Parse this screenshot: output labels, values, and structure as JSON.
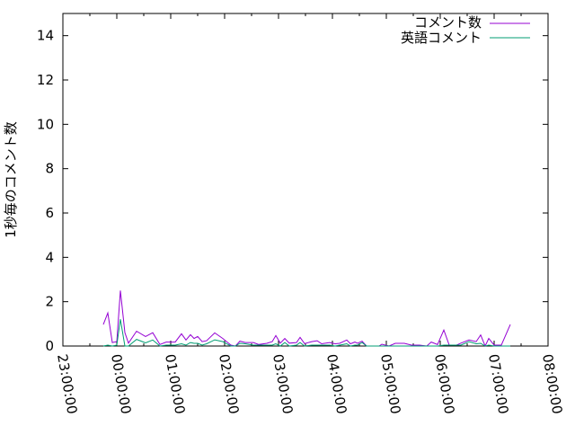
{
  "chart_data": {
    "type": "line",
    "title": "",
    "xlabel": "",
    "ylabel": "1秒毎のコメント数",
    "xlim": [
      "23:00:00",
      "08:00:00"
    ],
    "ylim": [
      0,
      15
    ],
    "xticks": [
      "23:00:00",
      "00:00:00",
      "01:00:00",
      "02:00:00",
      "03:00:00",
      "04:00:00",
      "05:00:00",
      "06:00:00",
      "07:00:00",
      "08:00:00"
    ],
    "yticks": [
      "0",
      "2",
      "4",
      "6",
      "8",
      "10",
      "12",
      "14"
    ],
    "grid": false,
    "legend": "top-right",
    "x": [
      "23:45",
      "23:50",
      "23:55",
      "00:00",
      "00:04",
      "00:09",
      "00:13",
      "00:22",
      "00:32",
      "00:40",
      "00:48",
      "00:55",
      "01:05",
      "01:12",
      "01:17",
      "01:22",
      "01:26",
      "01:30",
      "01:35",
      "01:40",
      "01:49",
      "01:58",
      "02:07",
      "02:12",
      "02:17",
      "02:23",
      "02:32",
      "02:38",
      "02:47",
      "02:53",
      "02:57",
      "03:02",
      "03:07",
      "03:12",
      "03:20",
      "03:24",
      "03:29",
      "03:37",
      "03:43",
      "03:48",
      "03:57",
      "04:03",
      "04:08",
      "04:16",
      "04:20",
      "04:25",
      "04:28",
      "04:33",
      "04:38",
      "04:45",
      "04:52",
      "04:55",
      "05:03",
      "05:10",
      "05:20",
      "05:28",
      "05:37",
      "05:45",
      "05:50",
      "05:57",
      "06:04",
      "06:10",
      "06:18",
      "06:23",
      "06:32",
      "06:40",
      "06:45",
      "06:50",
      "06:54",
      "07:00",
      "07:08",
      "07:18"
    ],
    "series": [
      {
        "name": "コメント数",
        "color": "#9400d3",
        "values": [
          0.97,
          1.49,
          0.16,
          0.2,
          2.5,
          0.6,
          0.13,
          0.67,
          0.43,
          0.6,
          0.07,
          0.18,
          0.18,
          0.55,
          0.27,
          0.51,
          0.34,
          0.43,
          0.2,
          0.24,
          0.59,
          0.34,
          0.04,
          0,
          0.22,
          0.16,
          0.16,
          0.07,
          0.12,
          0.2,
          0.47,
          0.13,
          0.34,
          0.13,
          0.16,
          0.39,
          0.11,
          0.2,
          0.24,
          0.1,
          0.16,
          0.1,
          0.12,
          0.27,
          0.1,
          0.18,
          0.12,
          0.22,
          0,
          0,
          0,
          0.08,
          0,
          0.12,
          0.12,
          0.04,
          0.04,
          0,
          0.18,
          0.07,
          0.72,
          0.04,
          0.04,
          0.13,
          0.27,
          0.2,
          0.5,
          0,
          0.34,
          0.04,
          0.04,
          0.97
        ]
      },
      {
        "name": "英語コメント",
        "color": "#009e73",
        "values": [
          0,
          0.04,
          0,
          0.04,
          1.21,
          0,
          0,
          0.3,
          0.14,
          0.27,
          0,
          0.04,
          0.04,
          0.1,
          0.04,
          0.16,
          0.12,
          0.12,
          0.04,
          0.1,
          0.28,
          0.2,
          0,
          0,
          0.12,
          0.1,
          0.04,
          0.04,
          0.04,
          0.04,
          0.1,
          0,
          0.16,
          0,
          0.04,
          0.16,
          0,
          0.04,
          0.04,
          0.04,
          0.04,
          0,
          0.04,
          0.1,
          0,
          0.04,
          0.04,
          0.16,
          0,
          0,
          0,
          0,
          0,
          0,
          0,
          0,
          0,
          0,
          0,
          0,
          0.04,
          0.04,
          0.04,
          0.04,
          0.2,
          0.1,
          0.12,
          0,
          0.04,
          0,
          0,
          0
        ]
      }
    ]
  }
}
